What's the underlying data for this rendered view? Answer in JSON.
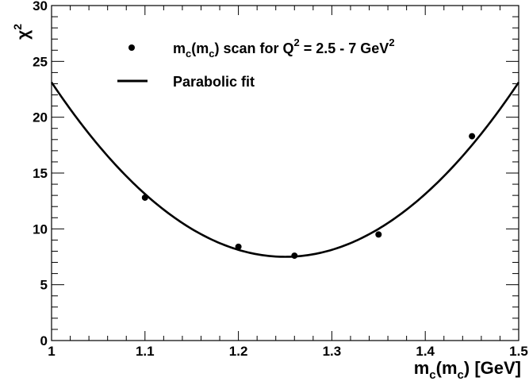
{
  "chart_data": {
    "type": "scatter",
    "title": "",
    "xlabel": {
      "base": "m",
      "sub": "c",
      "paren_base": "m",
      "paren_sub": "c",
      "unit": " [GeV]"
    },
    "ylabel": {
      "base": "χ",
      "sup": "2"
    },
    "xlim": [
      1.0,
      1.5
    ],
    "ylim": [
      0,
      30
    ],
    "x_ticks": [
      1.0,
      1.1,
      1.2,
      1.3,
      1.4,
      1.5
    ],
    "x_tick_labels": [
      "1",
      "1.1",
      "1.2",
      "1.3",
      "1.4",
      "1.5"
    ],
    "y_ticks": [
      0,
      5,
      10,
      15,
      20,
      25,
      30
    ],
    "y_tick_labels": [
      "0",
      "5",
      "10",
      "15",
      "20",
      "25",
      "30"
    ],
    "grid": false,
    "legend_position": "top-left",
    "series": [
      {
        "name": "scan",
        "kind": "points",
        "legend": {
          "pre": "m",
          "sub1": "c",
          "mid": "(m",
          "sub2": "c",
          "post": ") scan for Q",
          "sup1": "2",
          "post2": " = 2.5 - 7 GeV",
          "sup2": "2"
        },
        "x": [
          1.1,
          1.2,
          1.26,
          1.35,
          1.45
        ],
        "y": [
          12.8,
          8.4,
          7.6,
          9.5,
          18.3
        ]
      },
      {
        "name": "Parabolic fit",
        "kind": "curve",
        "legend_label": "Parabolic fit",
        "parabola": {
          "x_min": 1.25,
          "y_min": 7.5,
          "curvature": 250
        }
      }
    ]
  }
}
